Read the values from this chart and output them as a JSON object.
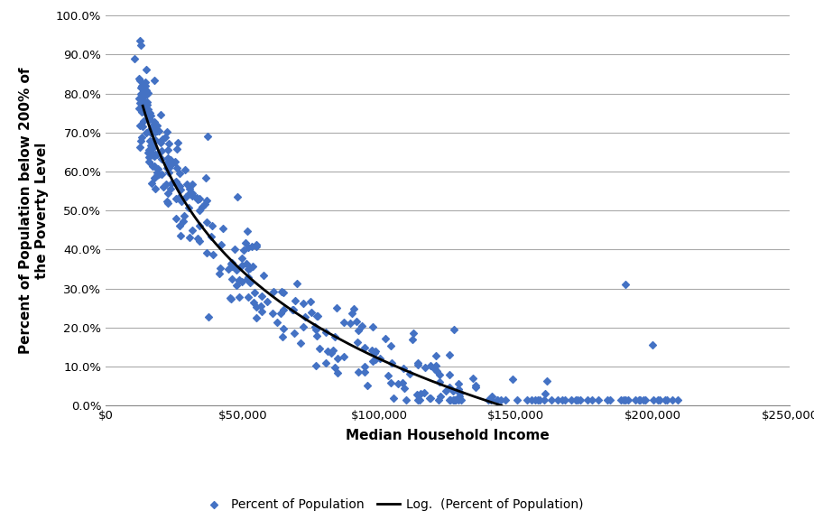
{
  "xlabel": "Median Household Income",
  "ylabel": "Percent of Population below 200% of\nthe Poverty Level",
  "scatter_color": "#4472C4",
  "line_color": "#000000",
  "background_color": "#FFFFFF",
  "grid_color": "#AAAAAA",
  "xlim": [
    0,
    250000
  ],
  "ylim": [
    0.0,
    1.0
  ],
  "xticks": [
    0,
    50000,
    100000,
    150000,
    200000,
    250000
  ],
  "yticks": [
    0.0,
    0.1,
    0.2,
    0.3,
    0.4,
    0.5,
    0.6,
    0.7,
    0.8,
    0.9,
    1.0
  ],
  "legend_scatter_label": "Percent of Population",
  "legend_line_label": "Log.  (Percent of Population)",
  "log_a": 3.85,
  "log_b": -0.324,
  "seed": 42
}
